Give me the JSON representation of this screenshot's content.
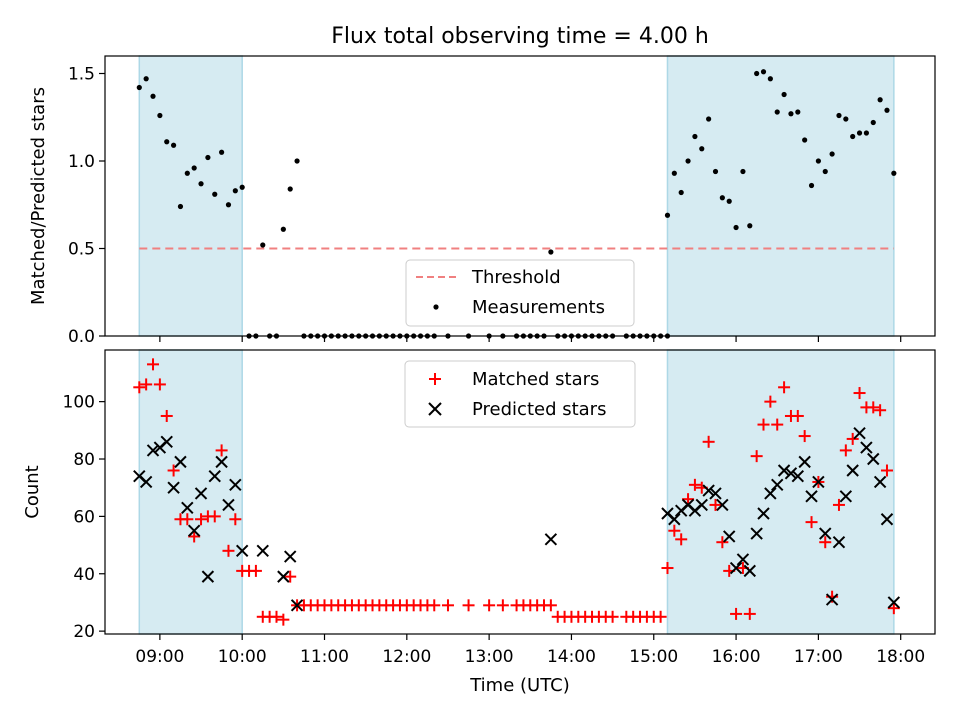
{
  "chart_data": {
    "type": "scatter",
    "title": "Flux total observing time = 4.00 h",
    "xlabel": "Time (UTC)",
    "xlim": [
      "08:20",
      "18:25"
    ],
    "xticks": [
      "09:00",
      "10:00",
      "11:00",
      "12:00",
      "13:00",
      "14:00",
      "15:00",
      "16:00",
      "17:00",
      "18:00"
    ],
    "shaded_spans": [
      [
        "08:45",
        "10:00"
      ],
      [
        "15:10",
        "17:55"
      ]
    ],
    "top": {
      "ylabel": "Matched/Predicted stars",
      "ylim": [
        0,
        1.6
      ],
      "yticks": [
        "0.0",
        "0.5",
        "1.0",
        "1.5"
      ],
      "threshold": {
        "name": "Threshold",
        "value": 0.5,
        "color": "#f08080"
      },
      "legend": {
        "placement": "lower-center",
        "entries": [
          "Threshold",
          "Measurements"
        ]
      },
      "series": [
        {
          "name": "Measurements",
          "color": "#000000",
          "points": [
            [
              "08:45",
              1.42
            ],
            [
              "08:50",
              1.47
            ],
            [
              "08:55",
              1.37
            ],
            [
              "09:00",
              1.26
            ],
            [
              "09:05",
              1.11
            ],
            [
              "09:10",
              1.09
            ],
            [
              "09:15",
              0.74
            ],
            [
              "09:20",
              0.93
            ],
            [
              "09:25",
              0.96
            ],
            [
              "09:30",
              0.87
            ],
            [
              "09:35",
              1.02
            ],
            [
              "09:40",
              0.81
            ],
            [
              "09:45",
              1.05
            ],
            [
              "09:50",
              0.75
            ],
            [
              "09:55",
              0.83
            ],
            [
              "10:00",
              0.85
            ],
            [
              "10:05",
              0.0
            ],
            [
              "10:10",
              0.0
            ],
            [
              "10:15",
              0.52
            ],
            [
              "10:20",
              0.0
            ],
            [
              "10:25",
              0.0
            ],
            [
              "10:30",
              0.61
            ],
            [
              "10:35",
              0.84
            ],
            [
              "10:40",
              1.0
            ],
            [
              "10:45",
              0.0
            ],
            [
              "10:50",
              0.0
            ],
            [
              "10:55",
              0.0
            ],
            [
              "11:00",
              0.0
            ],
            [
              "11:05",
              0.0
            ],
            [
              "11:10",
              0.0
            ],
            [
              "11:15",
              0.0
            ],
            [
              "11:20",
              0.0
            ],
            [
              "11:25",
              0.0
            ],
            [
              "11:30",
              0.0
            ],
            [
              "11:35",
              0.0
            ],
            [
              "11:40",
              0.0
            ],
            [
              "11:45",
              0.0
            ],
            [
              "11:50",
              0.0
            ],
            [
              "11:55",
              0.0
            ],
            [
              "12:00",
              0.0
            ],
            [
              "12:05",
              0.0
            ],
            [
              "12:10",
              0.0
            ],
            [
              "12:15",
              0.0
            ],
            [
              "12:20",
              0.0
            ],
            [
              "12:30",
              0.0
            ],
            [
              "12:45",
              0.0
            ],
            [
              "13:00",
              0.0
            ],
            [
              "13:10",
              0.0
            ],
            [
              "13:20",
              0.0
            ],
            [
              "13:25",
              0.0
            ],
            [
              "13:30",
              0.0
            ],
            [
              "13:35",
              0.0
            ],
            [
              "13:40",
              0.0
            ],
            [
              "13:50",
              0.0
            ],
            [
              "13:55",
              0.0
            ],
            [
              "13:45",
              0.48
            ],
            [
              "14:00",
              0.0
            ],
            [
              "14:05",
              0.0
            ],
            [
              "14:10",
              0.0
            ],
            [
              "14:15",
              0.0
            ],
            [
              "14:20",
              0.0
            ],
            [
              "14:25",
              0.0
            ],
            [
              "14:30",
              0.0
            ],
            [
              "14:40",
              0.0
            ],
            [
              "14:45",
              0.0
            ],
            [
              "14:50",
              0.0
            ],
            [
              "14:55",
              0.0
            ],
            [
              "15:00",
              0.0
            ],
            [
              "15:05",
              0.0
            ],
            [
              "15:10",
              0.0
            ],
            [
              "15:10",
              0.69
            ],
            [
              "15:15",
              0.93
            ],
            [
              "15:20",
              0.82
            ],
            [
              "15:25",
              1.0
            ],
            [
              "15:30",
              1.14
            ],
            [
              "15:35",
              1.07
            ],
            [
              "15:40",
              1.24
            ],
            [
              "15:45",
              0.94
            ],
            [
              "15:50",
              0.79
            ],
            [
              "15:55",
              0.77
            ],
            [
              "16:00",
              0.62
            ],
            [
              "16:05",
              0.94
            ],
            [
              "16:10",
              0.63
            ],
            [
              "16:15",
              1.5
            ],
            [
              "16:20",
              1.51
            ],
            [
              "16:25",
              1.47
            ],
            [
              "16:30",
              1.28
            ],
            [
              "16:35",
              1.38
            ],
            [
              "16:40",
              1.27
            ],
            [
              "16:45",
              1.28
            ],
            [
              "16:50",
              1.12
            ],
            [
              "16:55",
              0.86
            ],
            [
              "17:00",
              1.0
            ],
            [
              "17:05",
              0.94
            ],
            [
              "17:10",
              1.04
            ],
            [
              "17:15",
              1.26
            ],
            [
              "17:20",
              1.24
            ],
            [
              "17:25",
              1.14
            ],
            [
              "17:30",
              1.16
            ],
            [
              "17:35",
              1.16
            ],
            [
              "17:40",
              1.22
            ],
            [
              "17:45",
              1.35
            ],
            [
              "17:50",
              1.29
            ],
            [
              "17:55",
              0.93
            ]
          ]
        }
      ]
    },
    "bottom": {
      "ylabel": "Count",
      "ylim": [
        19,
        118
      ],
      "yticks": [
        "20",
        "40",
        "60",
        "80",
        "100"
      ],
      "legend": {
        "placement": "upper-center",
        "entries": [
          "Matched stars",
          "Predicted stars"
        ]
      },
      "series": [
        {
          "name": "Matched stars",
          "color": "#ff0000",
          "marker": "plus",
          "points": [
            [
              "08:45",
              105
            ],
            [
              "08:50",
              106
            ],
            [
              "08:55",
              113
            ],
            [
              "09:00",
              106
            ],
            [
              "09:05",
              95
            ],
            [
              "09:10",
              76
            ],
            [
              "09:15",
              59
            ],
            [
              "09:20",
              59
            ],
            [
              "09:25",
              53
            ],
            [
              "09:30",
              59
            ],
            [
              "09:35",
              60
            ],
            [
              "09:40",
              60
            ],
            [
              "09:45",
              83
            ],
            [
              "09:50",
              48
            ],
            [
              "09:55",
              59
            ],
            [
              "10:00",
              41
            ],
            [
              "10:05",
              41
            ],
            [
              "10:10",
              41
            ],
            [
              "10:15",
              25
            ],
            [
              "10:20",
              25
            ],
            [
              "10:25",
              25
            ],
            [
              "10:30",
              24
            ],
            [
              "10:35",
              39
            ],
            [
              "10:40",
              29
            ],
            [
              "10:45",
              29
            ],
            [
              "10:50",
              29
            ],
            [
              "10:55",
              29
            ],
            [
              "11:00",
              29
            ],
            [
              "11:05",
              29
            ],
            [
              "11:10",
              29
            ],
            [
              "11:15",
              29
            ],
            [
              "11:20",
              29
            ],
            [
              "11:25",
              29
            ],
            [
              "11:30",
              29
            ],
            [
              "11:35",
              29
            ],
            [
              "11:40",
              29
            ],
            [
              "11:45",
              29
            ],
            [
              "11:50",
              29
            ],
            [
              "11:55",
              29
            ],
            [
              "12:00",
              29
            ],
            [
              "12:05",
              29
            ],
            [
              "12:10",
              29
            ],
            [
              "12:15",
              29
            ],
            [
              "12:20",
              29
            ],
            [
              "12:30",
              29
            ],
            [
              "12:45",
              29
            ],
            [
              "13:00",
              29
            ],
            [
              "13:10",
              29
            ],
            [
              "13:20",
              29
            ],
            [
              "13:25",
              29
            ],
            [
              "13:30",
              29
            ],
            [
              "13:35",
              29
            ],
            [
              "13:40",
              29
            ],
            [
              "13:45",
              29
            ],
            [
              "13:50",
              25
            ],
            [
              "13:55",
              25
            ],
            [
              "14:00",
              25
            ],
            [
              "14:05",
              25
            ],
            [
              "14:10",
              25
            ],
            [
              "14:15",
              25
            ],
            [
              "14:20",
              25
            ],
            [
              "14:25",
              25
            ],
            [
              "14:30",
              25
            ],
            [
              "14:40",
              25
            ],
            [
              "14:45",
              25
            ],
            [
              "14:50",
              25
            ],
            [
              "14:55",
              25
            ],
            [
              "15:00",
              25
            ],
            [
              "15:05",
              25
            ],
            [
              "15:10",
              42
            ],
            [
              "15:15",
              55
            ],
            [
              "15:20",
              52
            ],
            [
              "15:25",
              66
            ],
            [
              "15:30",
              71
            ],
            [
              "15:35",
              70
            ],
            [
              "15:40",
              86
            ],
            [
              "15:45",
              64
            ],
            [
              "15:50",
              51
            ],
            [
              "15:55",
              41
            ],
            [
              "16:00",
              26
            ],
            [
              "16:05",
              42
            ],
            [
              "16:10",
              26
            ],
            [
              "16:15",
              81
            ],
            [
              "16:20",
              92
            ],
            [
              "16:25",
              100
            ],
            [
              "16:30",
              92
            ],
            [
              "16:35",
              105
            ],
            [
              "16:40",
              95
            ],
            [
              "16:45",
              95
            ],
            [
              "16:50",
              88
            ],
            [
              "16:55",
              58
            ],
            [
              "17:00",
              72
            ],
            [
              "17:05",
              51
            ],
            [
              "17:10",
              32
            ],
            [
              "17:15",
              64
            ],
            [
              "17:20",
              83
            ],
            [
              "17:25",
              87
            ],
            [
              "17:30",
              103
            ],
            [
              "17:35",
              98
            ],
            [
              "17:40",
              98
            ],
            [
              "17:45",
              97
            ],
            [
              "17:50",
              76
            ],
            [
              "17:55",
              28
            ]
          ]
        },
        {
          "name": "Predicted stars",
          "color": "#000000",
          "marker": "x",
          "points": [
            [
              "08:45",
              74
            ],
            [
              "08:50",
              72
            ],
            [
              "08:55",
              83
            ],
            [
              "09:00",
              84
            ],
            [
              "09:05",
              86
            ],
            [
              "09:10",
              70
            ],
            [
              "09:15",
              79
            ],
            [
              "09:20",
              63
            ],
            [
              "09:25",
              55
            ],
            [
              "09:30",
              68
            ],
            [
              "09:35",
              39
            ],
            [
              "09:40",
              74
            ],
            [
              "09:45",
              79
            ],
            [
              "09:50",
              64
            ],
            [
              "09:55",
              71
            ],
            [
              "10:00",
              48
            ],
            [
              "10:15",
              48
            ],
            [
              "10:30",
              39
            ],
            [
              "10:35",
              46
            ],
            [
              "10:40",
              29
            ],
            [
              "13:45",
              52
            ],
            [
              "15:10",
              61
            ],
            [
              "15:15",
              59
            ],
            [
              "15:20",
              62
            ],
            [
              "15:25",
              64
            ],
            [
              "15:30",
              62
            ],
            [
              "15:35",
              64
            ],
            [
              "15:40",
              69
            ],
            [
              "15:45",
              68
            ],
            [
              "15:50",
              64
            ],
            [
              "15:55",
              53
            ],
            [
              "16:00",
              42
            ],
            [
              "16:05",
              45
            ],
            [
              "16:10",
              41
            ],
            [
              "16:15",
              54
            ],
            [
              "16:20",
              61
            ],
            [
              "16:25",
              68
            ],
            [
              "16:30",
              71
            ],
            [
              "16:35",
              76
            ],
            [
              "16:40",
              75
            ],
            [
              "16:45",
              74
            ],
            [
              "16:50",
              79
            ],
            [
              "16:55",
              67
            ],
            [
              "17:00",
              72
            ],
            [
              "17:05",
              54
            ],
            [
              "17:10",
              31
            ],
            [
              "17:15",
              51
            ],
            [
              "17:20",
              67
            ],
            [
              "17:25",
              76
            ],
            [
              "17:30",
              89
            ],
            [
              "17:35",
              84
            ],
            [
              "17:40",
              80
            ],
            [
              "17:45",
              72
            ],
            [
              "17:50",
              59
            ],
            [
              "17:55",
              30
            ]
          ]
        }
      ]
    }
  }
}
